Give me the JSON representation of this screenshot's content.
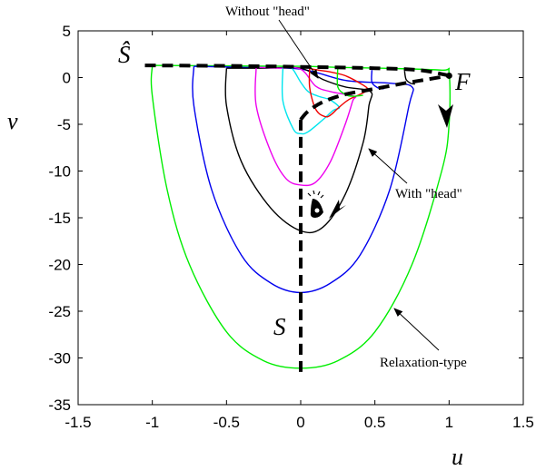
{
  "chart_data": {
    "type": "line",
    "title": "",
    "xlabel": "u",
    "ylabel": "v",
    "xlim": [
      -1.5,
      1.5
    ],
    "ylim": [
      -35,
      5
    ],
    "xticks": [
      "-1.5",
      "-1",
      "-0.5",
      "0",
      "0.5",
      "1",
      "1.5"
    ],
    "yticks": [
      "5",
      "0",
      "-5",
      "-10",
      "-15",
      "-20",
      "-25",
      "-30",
      "-35"
    ],
    "grid": false,
    "series": [
      {
        "color": "#00ee00",
        "x": [
          -1.0,
          -1.0,
          -0.9,
          -0.75,
          -0.5,
          -0.25,
          0.0,
          0.25,
          0.5,
          0.75,
          0.95,
          1.0,
          1.0,
          0.95,
          0.55,
          0.25,
          0.0,
          -0.5,
          -1.0
        ],
        "y": [
          1.3,
          -2.0,
          -12.0,
          -20.0,
          -27.2,
          -30.3,
          -31.1,
          -30.3,
          -27.2,
          -20.0,
          -10.0,
          -5.0,
          0.5,
          0.8,
          1.0,
          1.1,
          1.2,
          1.25,
          1.3
        ]
      },
      {
        "color": "#0000ee",
        "x": [
          -0.72,
          -0.72,
          -0.6,
          -0.4,
          -0.2,
          0.0,
          0.2,
          0.4,
          0.6,
          0.73,
          0.75,
          0.6,
          0.3,
          0.0,
          -0.4,
          -0.72
        ],
        "y": [
          1.2,
          -3.0,
          -12.0,
          -19.0,
          -22.0,
          -23.0,
          -22.0,
          -19.0,
          -12.0,
          -3.0,
          -1.0,
          -0.6,
          -0.3,
          0.9,
          1.1,
          1.2
        ]
      },
      {
        "color": "#000000",
        "x": [
          -0.5,
          -0.5,
          -0.4,
          -0.2,
          0.0,
          0.15,
          0.3,
          0.42,
          0.46,
          0.47,
          0.3,
          0.15,
          0.0,
          -0.25,
          -0.5
        ],
        "y": [
          1.0,
          -3.0,
          -9.0,
          -14.0,
          -16.4,
          -16.0,
          -12.5,
          -7.0,
          -3.0,
          -1.5,
          -1.0,
          -0.2,
          1.0,
          1.0,
          1.0
        ]
      },
      {
        "color": "#ee00ee",
        "x": [
          -0.3,
          -0.3,
          -0.2,
          -0.1,
          0.0,
          0.1,
          0.2,
          0.3,
          0.35,
          0.36,
          0.2,
          0.1,
          0.0,
          -0.15,
          -0.3
        ],
        "y": [
          1.1,
          -3.0,
          -8.0,
          -10.8,
          -11.5,
          -11.2,
          -9.0,
          -5.0,
          -2.5,
          -2.0,
          -1.5,
          -0.9,
          0.9,
          1.0,
          1.1
        ]
      },
      {
        "color": "#00e5ee",
        "x": [
          -0.12,
          -0.12,
          -0.05,
          0.0,
          0.05,
          0.15,
          0.22,
          0.26,
          0.2,
          0.12,
          0.05,
          0.0,
          -0.06,
          -0.12
        ],
        "y": [
          1.1,
          -2.5,
          -5.5,
          -6.0,
          -5.8,
          -4.5,
          -3.5,
          -3.2,
          -2.4,
          -2.0,
          -1.5,
          -0.5,
          1.0,
          1.1
        ]
      },
      {
        "color": "#ee0000",
        "x": [
          0.06,
          0.06,
          0.09,
          0.12,
          0.15,
          0.18,
          0.21,
          0.25,
          0.32,
          0.4,
          0.45,
          0.42,
          0.3,
          0.2,
          0.12,
          0.08,
          0.06
        ],
        "y": [
          1.0,
          -1.0,
          -3.0,
          -3.8,
          -4.1,
          -4.2,
          -3.9,
          -3.3,
          -2.4,
          -1.8,
          -1.3,
          -0.8,
          0.2,
          0.6,
          0.8,
          0.9,
          1.0
        ]
      },
      {
        "color": "#00ee00",
        "x": [
          0.25,
          0.25,
          0.3,
          0.35,
          0.42
        ],
        "y": [
          1.0,
          -1.0,
          -1.8,
          -2.0,
          -1.9
        ]
      },
      {
        "color": "#0000ee",
        "x": [
          0.48,
          0.48,
          0.52,
          0.56
        ],
        "y": [
          0.8,
          -0.5,
          -1.1,
          -1.2
        ]
      },
      {
        "color": "#000000",
        "x": [
          0.7,
          0.71,
          0.74,
          0.77
        ],
        "y": [
          0.7,
          -0.2,
          -0.6,
          -0.7
        ]
      },
      {
        "color": "#000000",
        "dashed": true,
        "x": [
          -1.05,
          -0.5,
          0.0,
          0.5,
          0.8,
          1.0
        ],
        "y": [
          1.3,
          1.25,
          1.15,
          1.0,
          0.8,
          0.2
        ]
      },
      {
        "color": "#000000",
        "dashed": true,
        "x": [
          0.0,
          0.05,
          0.15,
          0.3,
          0.5,
          0.7,
          0.85,
          1.0
        ],
        "y": [
          -4.5,
          -3.6,
          -2.6,
          -1.8,
          -1.2,
          -0.6,
          -0.2,
          0.2
        ]
      },
      {
        "color": "#000000",
        "dashed": true,
        "x": [
          0.0,
          0.0
        ],
        "y": [
          -4.5,
          -31.5
        ]
      }
    ],
    "points": [
      {
        "name": "F",
        "x": 1.0,
        "y": 0.2
      }
    ],
    "annotations": [
      {
        "text": "Without \"head\""
      },
      {
        "text": "With \"head\""
      },
      {
        "text": "Relaxation-type"
      }
    ],
    "curve_labels": [
      {
        "text": "Ŝ"
      },
      {
        "text": "F"
      },
      {
        "text": "S"
      }
    ]
  }
}
